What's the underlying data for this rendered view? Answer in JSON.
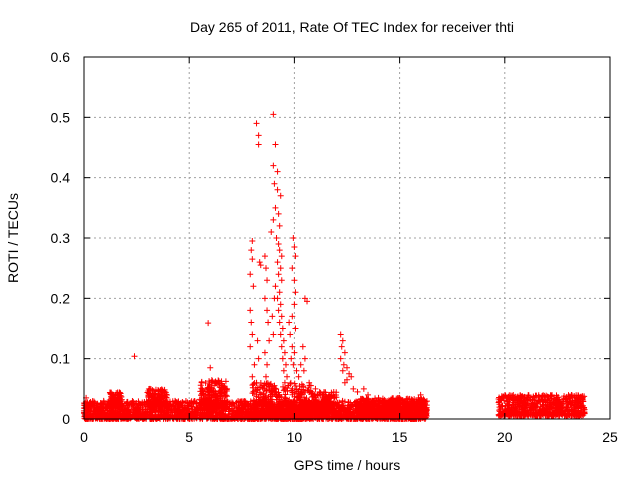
{
  "chart_data": {
    "type": "scatter",
    "title": "Day 265 of 2011, Rate Of TEC Index for receiver thti",
    "xlabel": "GPS time / hours",
    "ylabel": "ROTI / TECUs",
    "xlim": [
      0,
      25
    ],
    "ylim": [
      0,
      0.6
    ],
    "x_ticks": [
      0,
      5,
      10,
      15,
      20,
      25
    ],
    "x_tick_labels": [
      "0",
      "5",
      "10",
      "15",
      "20",
      "25"
    ],
    "y_ticks": [
      0,
      0.1,
      0.2,
      0.3,
      0.4,
      0.5,
      0.6
    ],
    "y_tick_labels": [
      "0",
      "0.1",
      "0.2",
      "0.3",
      "0.4",
      "0.5",
      "0.6"
    ],
    "grid": true,
    "marker": "+",
    "series": [
      {
        "name": "ROTI",
        "color": "#ff0000",
        "points": [
          [
            0.1,
            0.035
          ],
          [
            0.3,
            0.02
          ],
          [
            2.4,
            0.104
          ],
          [
            5.9,
            0.159
          ],
          [
            6.0,
            0.085
          ],
          [
            8.2,
            0.49
          ],
          [
            8.3,
            0.47
          ],
          [
            8.3,
            0.455
          ],
          [
            8.35,
            0.26
          ],
          [
            8.4,
            0.255
          ],
          [
            8.0,
            0.295
          ],
          [
            7.95,
            0.28
          ],
          [
            8.0,
            0.265
          ],
          [
            7.9,
            0.24
          ],
          [
            8.05,
            0.22
          ],
          [
            7.9,
            0.18
          ],
          [
            7.95,
            0.16
          ],
          [
            8.0,
            0.14
          ],
          [
            7.9,
            0.12
          ],
          [
            8.1,
            0.09
          ],
          [
            8.0,
            0.07
          ],
          [
            8.2,
            0.06
          ],
          [
            8.3,
            0.1
          ],
          [
            8.25,
            0.13
          ],
          [
            8.6,
            0.27
          ],
          [
            8.65,
            0.25
          ],
          [
            8.7,
            0.23
          ],
          [
            8.6,
            0.2
          ],
          [
            8.7,
            0.18
          ],
          [
            8.75,
            0.16
          ],
          [
            8.8,
            0.13
          ],
          [
            8.6,
            0.11
          ],
          [
            8.7,
            0.09
          ],
          [
            8.65,
            0.07
          ],
          [
            9.0,
            0.505
          ],
          [
            9.1,
            0.455
          ],
          [
            9.0,
            0.42
          ],
          [
            9.2,
            0.41
          ],
          [
            9.05,
            0.39
          ],
          [
            9.2,
            0.38
          ],
          [
            9.35,
            0.37
          ],
          [
            9.1,
            0.35
          ],
          [
            9.25,
            0.34
          ],
          [
            9.3,
            0.32
          ],
          [
            9.15,
            0.3
          ],
          [
            9.25,
            0.29
          ],
          [
            9.3,
            0.28
          ],
          [
            9.4,
            0.27
          ],
          [
            9.2,
            0.26
          ],
          [
            9.35,
            0.25
          ],
          [
            9.25,
            0.24
          ],
          [
            9.4,
            0.23
          ],
          [
            9.1,
            0.22
          ],
          [
            9.3,
            0.21
          ],
          [
            9.2,
            0.2
          ],
          [
            9.35,
            0.19
          ],
          [
            9.25,
            0.18
          ],
          [
            9.4,
            0.17
          ],
          [
            9.3,
            0.16
          ],
          [
            9.45,
            0.15
          ],
          [
            9.35,
            0.14
          ],
          [
            9.5,
            0.13
          ],
          [
            9.4,
            0.12
          ],
          [
            9.55,
            0.11
          ],
          [
            9.45,
            0.1
          ],
          [
            9.6,
            0.09
          ],
          [
            9.5,
            0.08
          ],
          [
            9.65,
            0.07
          ],
          [
            9.55,
            0.06
          ],
          [
            9.0,
            0.33
          ],
          [
            8.9,
            0.31
          ],
          [
            9.05,
            0.2
          ],
          [
            8.95,
            0.17
          ],
          [
            9.0,
            0.14
          ],
          [
            9.8,
            0.14
          ],
          [
            9.9,
            0.12
          ],
          [
            9.85,
            0.1
          ],
          [
            9.95,
            0.09
          ],
          [
            10.0,
            0.11
          ],
          [
            10.1,
            0.08
          ],
          [
            10.2,
            0.07
          ],
          [
            10.3,
            0.09
          ],
          [
            9.75,
            0.16
          ],
          [
            9.95,
            0.3
          ],
          [
            10.0,
            0.285
          ],
          [
            10.05,
            0.27
          ],
          [
            9.9,
            0.25
          ],
          [
            10.0,
            0.23
          ],
          [
            10.05,
            0.21
          ],
          [
            10.0,
            0.19
          ],
          [
            9.9,
            0.17
          ],
          [
            10.05,
            0.15
          ],
          [
            10.5,
            0.2
          ],
          [
            10.6,
            0.195
          ],
          [
            10.4,
            0.12
          ],
          [
            10.5,
            0.1
          ],
          [
            10.45,
            0.08
          ],
          [
            10.7,
            0.06
          ],
          [
            11.0,
            0.05
          ],
          [
            11.2,
            0.045
          ],
          [
            11.5,
            0.04
          ],
          [
            12.2,
            0.14
          ],
          [
            12.3,
            0.13
          ],
          [
            12.25,
            0.12
          ],
          [
            12.4,
            0.11
          ],
          [
            12.2,
            0.1
          ],
          [
            12.35,
            0.09
          ],
          [
            12.5,
            0.085
          ],
          [
            12.3,
            0.08
          ],
          [
            12.6,
            0.075
          ],
          [
            12.7,
            0.07
          ],
          [
            12.5,
            0.065
          ],
          [
            12.4,
            0.06
          ],
          [
            12.8,
            0.05
          ],
          [
            13.0,
            0.045
          ],
          [
            13.3,
            0.05
          ],
          [
            13.5,
            0.04
          ],
          [
            14.0,
            0.035
          ],
          [
            14.5,
            0.03
          ],
          [
            15.0,
            0.035
          ],
          [
            16.0,
            0.04
          ],
          [
            16.2,
            0.025
          ],
          [
            16.1,
            0.015
          ],
          [
            15.5,
            0.02
          ]
        ],
        "band_segments": [
          {
            "x_start": 0.0,
            "x_end": 16.3,
            "y_low": 0.0,
            "y_high": 0.03
          },
          {
            "x_start": 1.2,
            "x_end": 1.8,
            "y_low": 0.02,
            "y_high": 0.045
          },
          {
            "x_start": 3.0,
            "x_end": 4.0,
            "y_low": 0.02,
            "y_high": 0.05
          },
          {
            "x_start": 5.5,
            "x_end": 6.8,
            "y_low": 0.02,
            "y_high": 0.065
          },
          {
            "x_start": 8.0,
            "x_end": 10.8,
            "y_low": 0.0,
            "y_high": 0.06
          },
          {
            "x_start": 10.8,
            "x_end": 12.0,
            "y_low": 0.01,
            "y_high": 0.045
          },
          {
            "x_start": 13.0,
            "x_end": 16.3,
            "y_low": 0.005,
            "y_high": 0.035
          },
          {
            "x_start": 19.7,
            "x_end": 23.8,
            "y_low": 0.005,
            "y_high": 0.04
          }
        ]
      }
    ]
  }
}
